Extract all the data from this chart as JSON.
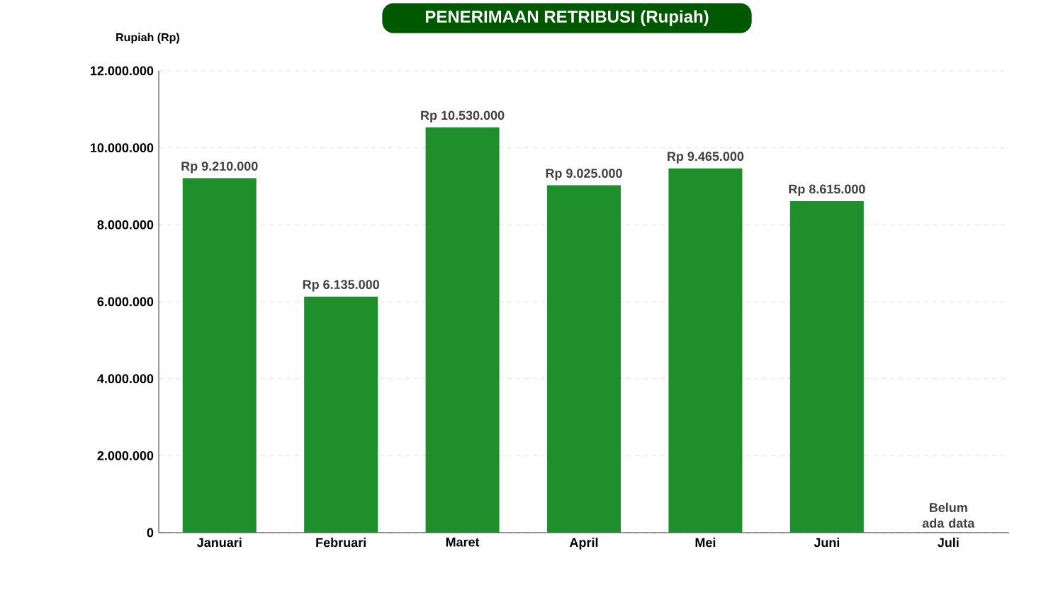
{
  "chart_data": {
    "type": "bar",
    "title": "PENERIMAAN RETRIBUSI (Rupiah)",
    "ylabel": "Rupiah (Rp)",
    "categories": [
      "Januari",
      "Februari",
      "Maret",
      "April",
      "Mei",
      "Juni",
      "Juli"
    ],
    "values": [
      9210000,
      6135000,
      10530000,
      9025000,
      9465000,
      8615000,
      null
    ],
    "value_labels": [
      "Rp 9.210.000",
      "Rp 6.135.000",
      "Rp 10.530.000",
      "Rp 9.025.000",
      "Rp 9.465.000",
      "Rp 8.615.000",
      null
    ],
    "color": "#1f8f2c",
    "ylim": [
      0,
      12000000
    ],
    "yticks": [
      0,
      {
        "value": 2000000,
        "label": "2.000.000"
      },
      {
        "value": 4000000,
        "label": "4.000.000"
      },
      {
        "value": 6000000,
        "label": "6.000.000"
      },
      {
        "value": 8000000,
        "label": "8.000.000"
      },
      {
        "value": 10000000,
        "label": "10.000.000"
      },
      {
        "value": 12000000,
        "label": "12.000.000"
      }
    ],
    "grid": "y",
    "annotations": [
      "Belum ada data"
    ]
  }
}
